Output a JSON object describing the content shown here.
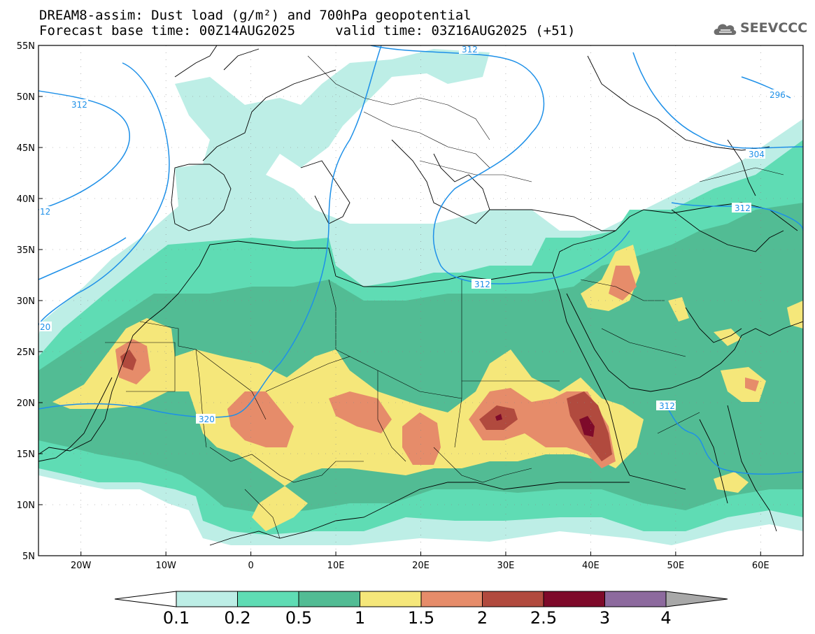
{
  "header": {
    "title_line1": "DREAM8-assim: Dust load (g/m²) and 700hPa geopotential",
    "title_line2": "Forecast base time: 00Z14AUG2025     valid time: 03Z16AUG2025 (+51)"
  },
  "logo": {
    "text": "SEEVCCC",
    "icon": "cloud-icon"
  },
  "map": {
    "lon_range": [
      -25,
      65
    ],
    "lat_range": [
      5,
      55
    ],
    "lat_ticks": [
      "55N",
      "50N",
      "45N",
      "40N",
      "35N",
      "30N",
      "25N",
      "20N",
      "15N",
      "10N",
      "5N"
    ],
    "lon_ticks": [
      "20W",
      "10W",
      "0",
      "10E",
      "20E",
      "30E",
      "40E",
      "50E",
      "60E"
    ],
    "contour_labels": [
      "312",
      "312",
      "296",
      "304",
      "312",
      "12",
      "312",
      "312",
      "20",
      "320"
    ],
    "colors": {
      "c01": "#bdeee6",
      "c02": "#5fdcb4",
      "c05": "#52bc94",
      "c1": "#f5e77a",
      "c15": "#e68c6a",
      "c2": "#b14a3e",
      "c25": "#7e0a2a",
      "c3": "#8d6a9e",
      "c4": "#a8a8a8",
      "contour": "#1e90e8",
      "coast": "#000000"
    }
  },
  "colorbar": {
    "labels": [
      "0.1",
      "0.2",
      "0.5",
      "1",
      "1.5",
      "2",
      "2.5",
      "3",
      "4"
    ]
  }
}
